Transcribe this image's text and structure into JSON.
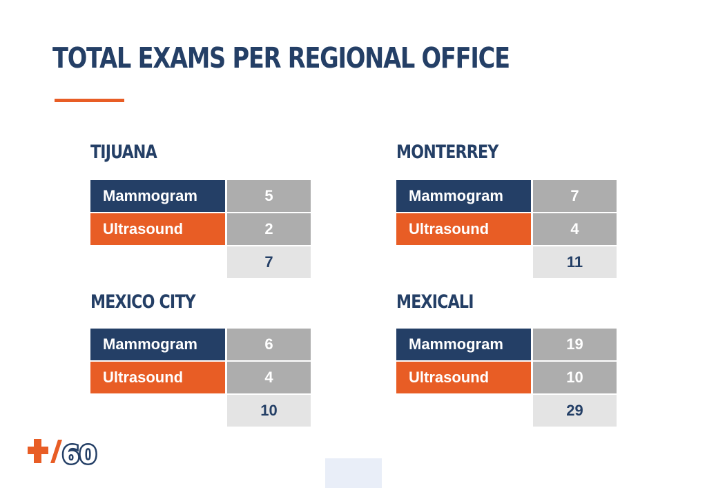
{
  "page": {
    "title": "TOTAL EXAMS PER REGIONAL OFFICE",
    "accent_color": "#e85d25",
    "primary_color": "#243f66"
  },
  "offices": [
    {
      "name": "TIJUANA",
      "mammogram_label": "Mammogram",
      "mammogram": "5",
      "ultrasound_label": "Ultrasound",
      "ultrasound": "2",
      "total": "7"
    },
    {
      "name": "MONTERREY",
      "mammogram_label": "Mammogram",
      "mammogram": "7",
      "ultrasound_label": "Ultrasound",
      "ultrasound": "4",
      "total": "11"
    },
    {
      "name": "MEXICO CITY",
      "mammogram_label": "Mammogram",
      "mammogram": "6",
      "ultrasound_label": "Ultrasound",
      "ultrasound": "4",
      "total": "10"
    },
    {
      "name": "MEXICALI",
      "mammogram_label": "Mammogram",
      "mammogram": "19",
      "ultrasound_label": "Ultrasound",
      "ultrasound": "10",
      "total": "29"
    }
  ],
  "logo": {
    "icon": "plus-60-logo",
    "text": "60"
  }
}
